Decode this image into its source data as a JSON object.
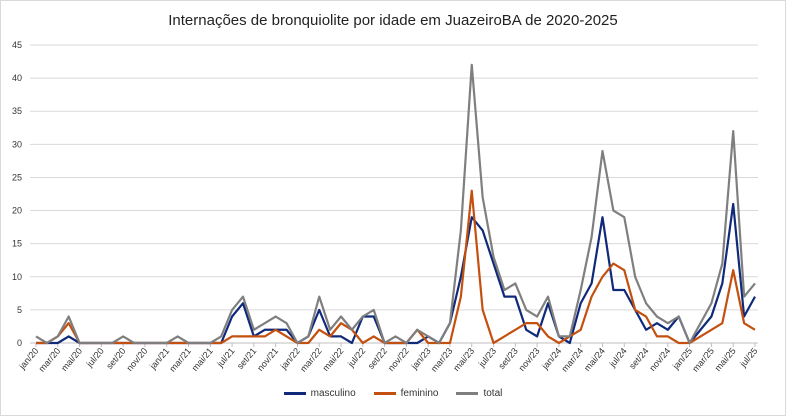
{
  "chart_data": {
    "type": "line",
    "title": "Internações de bronquiolite por idade em JuazeiroBA de 2020-2025",
    "xlabel": "",
    "ylabel": "",
    "ylim": [
      0,
      45
    ],
    "yticks": [
      0,
      5,
      10,
      15,
      20,
      25,
      30,
      35,
      40,
      45
    ],
    "grid": true,
    "legend_position": "bottom",
    "x": [
      "jan/20",
      "fev/20",
      "mar/20",
      "abr/20",
      "mai/20",
      "jun/20",
      "jul/20",
      "ago/20",
      "set/20",
      "out/20",
      "nov/20",
      "dez/20",
      "jan/21",
      "fev/21",
      "mar/21",
      "abr/21",
      "mai/21",
      "jun/21",
      "jul/21",
      "ago/21",
      "set/21",
      "out/21",
      "nov/21",
      "dez/21",
      "jan/22",
      "fev/22",
      "mar/22",
      "abr/22",
      "mai/22",
      "jun/22",
      "jul/22",
      "ago/22",
      "set/22",
      "out/22",
      "nov/22",
      "dez/22",
      "jan/23",
      "fev/23",
      "mar/23",
      "abr/23",
      "mai/23",
      "jun/23",
      "jul/23",
      "ago/23",
      "set/23",
      "out/23",
      "nov/23",
      "dez/23",
      "jan/24",
      "fev/24",
      "mar/24",
      "abr/24",
      "mai/24",
      "jun/24",
      "jul/24",
      "ago/24",
      "set/24",
      "out/24",
      "nov/24",
      "dez/24",
      "jan/25",
      "fev/25",
      "mar/25",
      "abr/25",
      "mai/25",
      "jun/25",
      "jul/25"
    ],
    "series": [
      {
        "name": "masculino",
        "color": "#0f2a7a",
        "values": [
          0,
          0,
          0,
          1,
          0,
          0,
          0,
          0,
          0,
          0,
          0,
          0,
          0,
          0,
          0,
          0,
          0,
          0,
          4,
          6,
          1,
          2,
          2,
          2,
          0,
          1,
          5,
          1,
          1,
          0,
          4,
          4,
          0,
          0,
          0,
          0,
          1,
          0,
          3,
          10,
          19,
          17,
          12,
          7,
          7,
          2,
          1,
          6,
          1,
          0,
          6,
          9,
          19,
          8,
          8,
          5,
          2,
          3,
          2,
          4,
          0,
          2,
          4,
          9,
          21,
          4,
          7
        ]
      },
      {
        "name": "feminino",
        "color": "#c4500f",
        "values": [
          0,
          0,
          1,
          3,
          0,
          0,
          0,
          0,
          0,
          0,
          0,
          0,
          0,
          0,
          0,
          0,
          0,
          0,
          1,
          1,
          1,
          1,
          2,
          1,
          0,
          0,
          2,
          1,
          3,
          2,
          0,
          1,
          0,
          0,
          0,
          2,
          0,
          0,
          0,
          7,
          23,
          5,
          0,
          1,
          2,
          3,
          3,
          1,
          0,
          1,
          2,
          7,
          10,
          12,
          11,
          5,
          4,
          1,
          1,
          0,
          0,
          1,
          2,
          3,
          11,
          3,
          2
        ]
      },
      {
        "name": "total",
        "color": "#7f7f7f",
        "values": [
          1,
          0,
          1,
          4,
          0,
          0,
          0,
          0,
          1,
          0,
          0,
          0,
          0,
          1,
          0,
          0,
          0,
          1,
          5,
          7,
          2,
          3,
          4,
          3,
          0,
          1,
          7,
          2,
          4,
          2,
          4,
          5,
          0,
          1,
          0,
          2,
          1,
          0,
          3,
          17,
          42,
          22,
          13,
          8,
          9,
          5,
          4,
          7,
          1,
          1,
          8,
          16,
          29,
          20,
          19,
          10,
          6,
          4,
          3,
          4,
          0,
          3,
          6,
          12,
          32,
          7,
          9
        ]
      }
    ]
  }
}
